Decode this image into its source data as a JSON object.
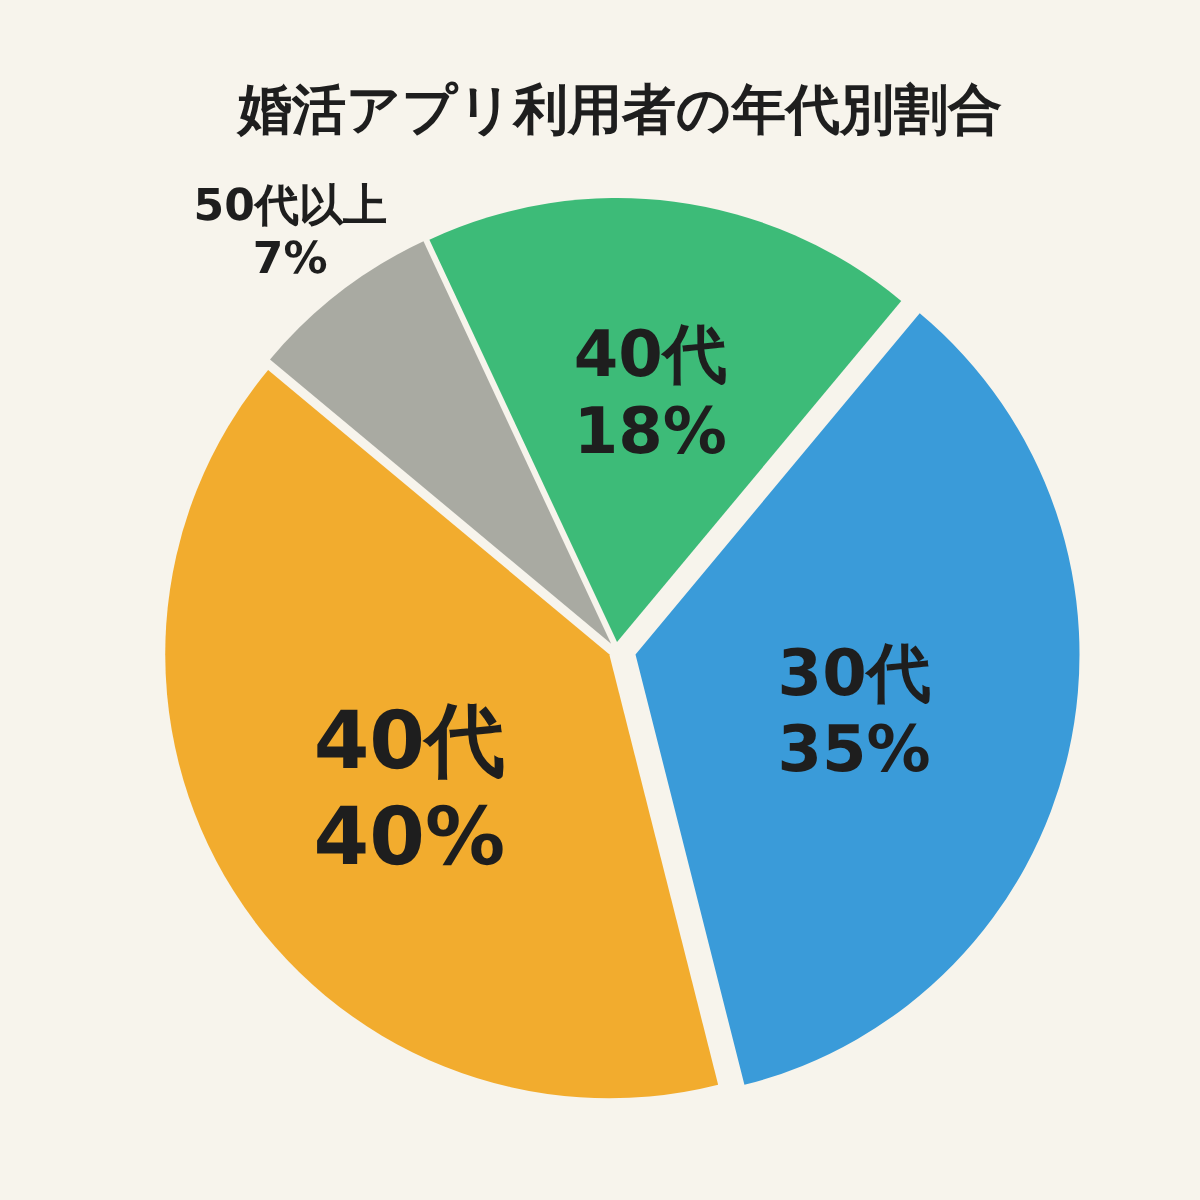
{
  "chart_data": {
    "type": "pie",
    "title": "婚活アプリ利用者の年代別割合",
    "categories": [
      "40代",
      "30代",
      "40代",
      "50代以上"
    ],
    "values": [
      18,
      35,
      40,
      7
    ],
    "value_labels": [
      "18%",
      "35%",
      "40%",
      "7%"
    ],
    "colors": [
      "#3dbb78",
      "#3a9bd9",
      "#f2ac2e",
      "#a9aaa2"
    ]
  }
}
